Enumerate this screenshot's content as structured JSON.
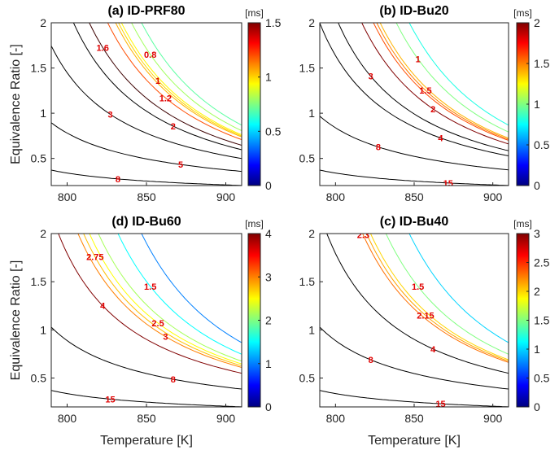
{
  "chart_data": [
    {
      "type": "contour",
      "title": "(a) ID-PRF80",
      "y_label": "Equivalence Ratio [-]",
      "xlim": [
        790,
        910
      ],
      "xticks": [
        800,
        850,
        900
      ],
      "ylim": [
        0.2,
        2
      ],
      "yticks": [
        0.5,
        1,
        1.5,
        2
      ],
      "colorbar": {
        "label": "[ms]",
        "lim": [
          0,
          1.5
        ],
        "ticks": [
          0,
          0.5,
          1,
          1.5
        ]
      },
      "levels": [
        0.7,
        0.8,
        0.95,
        1,
        1.05,
        1.2,
        1.6,
        2,
        3,
        5,
        8
      ]
    },
    {
      "type": "contour",
      "title": "(b) ID-Bu20",
      "xlim": [
        790,
        910
      ],
      "xticks": [
        800,
        850,
        900
      ],
      "ylim": [
        0.2,
        2
      ],
      "yticks": [
        0.5,
        1,
        1.5,
        2
      ],
      "colorbar": {
        "label": "[ms]",
        "lim": [
          0,
          2
        ],
        "ticks": [
          0,
          0.5,
          1,
          1.5,
          2
        ]
      },
      "levels": [
        0.8,
        1,
        1.4,
        1.5,
        1.6,
        2,
        3,
        4,
        8,
        15
      ]
    },
    {
      "type": "contour",
      "title": "(d) ID-Bu60",
      "y_label": "Equivalence Ratio [-]",
      "x_label": "Temperature [K]",
      "xlim": [
        790,
        910
      ],
      "xticks": [
        800,
        850,
        900
      ],
      "ylim": [
        0.2,
        2
      ],
      "yticks": [
        0.5,
        1,
        1.5,
        2
      ],
      "colorbar": {
        "label": "[ms]",
        "lim": [
          0,
          4
        ],
        "ticks": [
          0,
          1,
          2,
          3,
          4
        ]
      },
      "levels": [
        1,
        1.5,
        2.15,
        2.5,
        2.75,
        3,
        4,
        8,
        15
      ]
    },
    {
      "type": "contour",
      "title": "(c) ID-Bu40",
      "x_label": "Temperature [K]",
      "xlim": [
        790,
        910
      ],
      "xticks": [
        800,
        850,
        900
      ],
      "ylim": [
        0.2,
        2
      ],
      "yticks": [
        0.5,
        1,
        1.5,
        2
      ],
      "colorbar": {
        "label": "[ms]",
        "lim": [
          0,
          3
        ],
        "ticks": [
          0,
          0.5,
          1,
          1.5,
          2,
          2.5,
          3
        ]
      },
      "levels": [
        1,
        1.5,
        2,
        2.15,
        2.3,
        4,
        8,
        15
      ]
    }
  ]
}
